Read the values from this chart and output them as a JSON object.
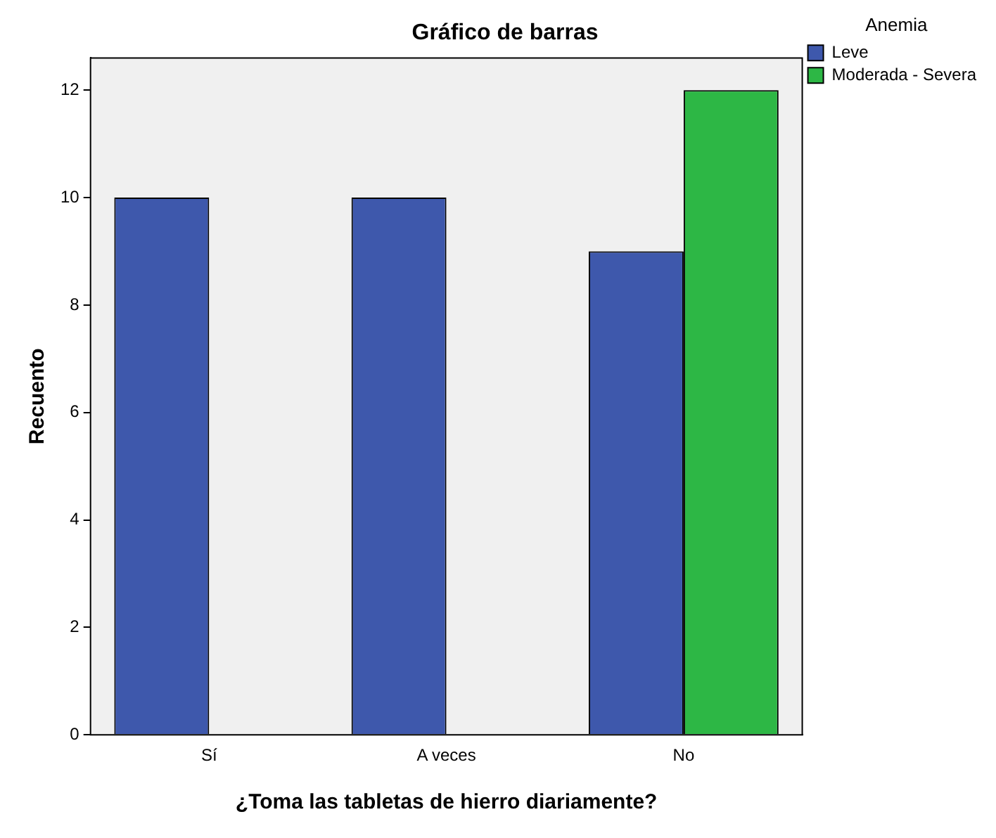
{
  "chart_data": {
    "type": "bar",
    "title": "Gráfico de barras",
    "xlabel": "¿Toma las tabletas de hierro diariamente?",
    "ylabel": "Recuento",
    "legend_title": "Anemia",
    "categories": [
      "Sí",
      "A veces",
      "No"
    ],
    "series": [
      {
        "name": "Leve",
        "color": "#3e58ac",
        "values": [
          10,
          10,
          9
        ]
      },
      {
        "name": "Moderada - Severa",
        "color": "#2db745",
        "values": [
          null,
          null,
          12
        ]
      }
    ],
    "ylim": [
      0,
      12.6
    ],
    "yticks": [
      0,
      2,
      4,
      6,
      8,
      10,
      12
    ],
    "grid": false,
    "legend": "top right"
  }
}
